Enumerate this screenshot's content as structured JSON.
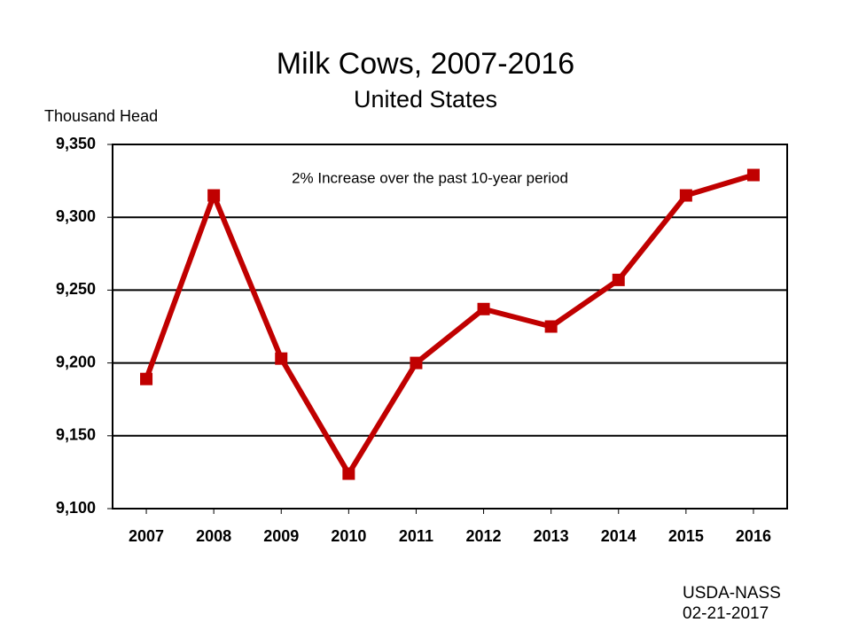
{
  "chart_data": {
    "type": "line",
    "title": "Milk Cows, 2007-2016",
    "subtitle": "United States",
    "y_label": "Thousand Head",
    "annotation": "2% Increase over the past 10-year period",
    "source": "USDA-NASS",
    "date": "02-21-2017",
    "categories": [
      "2007",
      "2008",
      "2009",
      "2010",
      "2011",
      "2012",
      "2013",
      "2014",
      "2015",
      "2016"
    ],
    "values": [
      9189,
      9315,
      9203,
      9124,
      9200,
      9237,
      9225,
      9257,
      9315,
      9329
    ],
    "color": "#c00000",
    "ylim": [
      9100,
      9350
    ],
    "yticks": [
      {
        "value": 9100,
        "label": "9,100"
      },
      {
        "value": 9150,
        "label": "9,150"
      },
      {
        "value": 9200,
        "label": "9,200"
      },
      {
        "value": 9250,
        "label": "9,250"
      },
      {
        "value": 9300,
        "label": "9,300"
      },
      {
        "value": 9350,
        "label": "9,350"
      }
    ],
    "grid": true
  }
}
